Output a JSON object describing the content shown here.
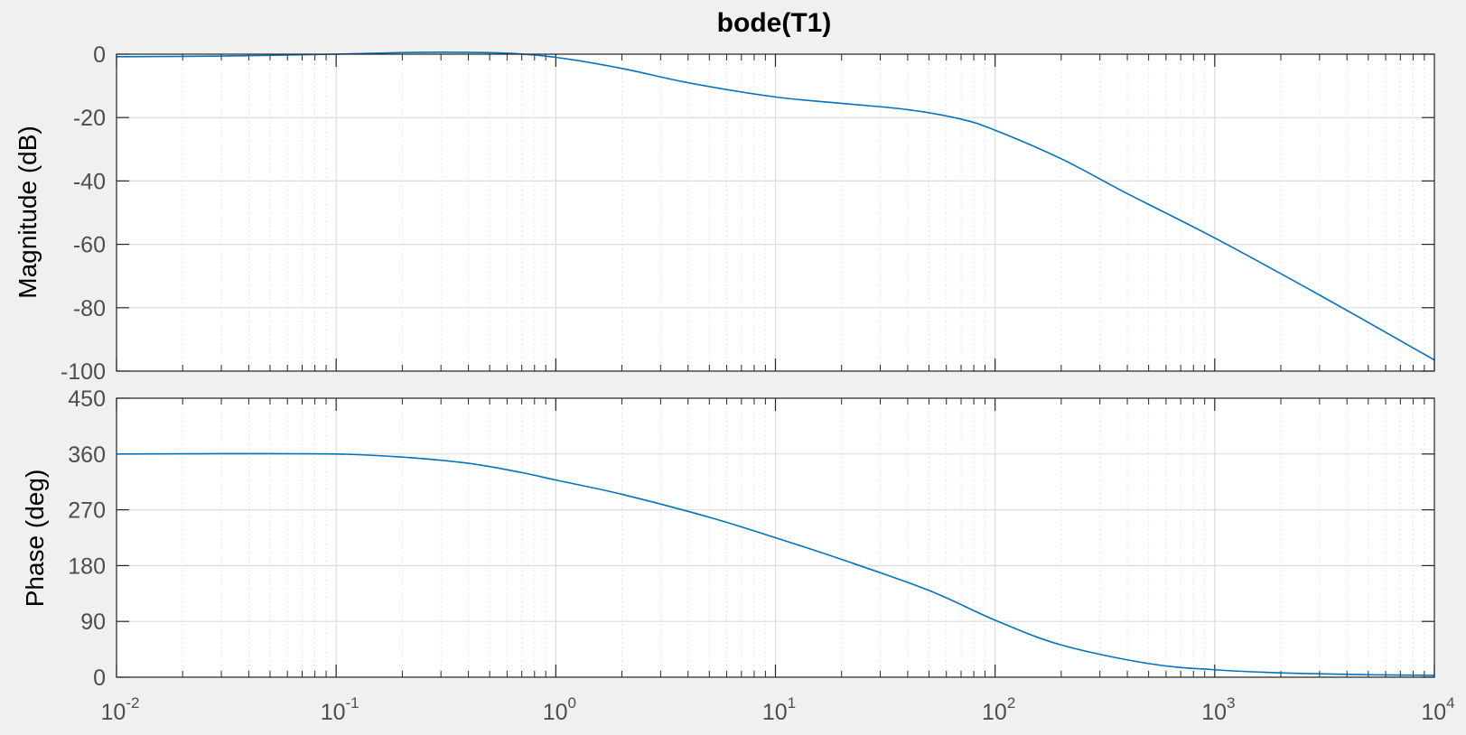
{
  "chart_data": {
    "type": "line",
    "title": "bode(T1)",
    "xscale": "log",
    "xlim": [
      0.01,
      10000
    ],
    "grid": true,
    "line_color": "#0072bd",
    "x_ticks": [
      {
        "base": "10",
        "exp": "-2",
        "value": 0.01
      },
      {
        "base": "10",
        "exp": "-1",
        "value": 0.1
      },
      {
        "base": "10",
        "exp": "0",
        "value": 1
      },
      {
        "base": "10",
        "exp": "1",
        "value": 10
      },
      {
        "base": "10",
        "exp": "2",
        "value": 100
      },
      {
        "base": "10",
        "exp": "3",
        "value": 1000
      },
      {
        "base": "10",
        "exp": "4",
        "value": 10000
      }
    ],
    "magnitude": {
      "ylabel": "Magnitude (dB)",
      "ylim": [
        -100,
        0
      ],
      "yticks": [
        0,
        -20,
        -40,
        -60,
        -80,
        -100
      ],
      "x": [
        0.01,
        0.03,
        0.1,
        0.2,
        0.35,
        0.6,
        1,
        2,
        4,
        10,
        20,
        40,
        70,
        100,
        200,
        400,
        1000,
        3000,
        10000
      ],
      "y": [
        -0.8,
        -0.6,
        0,
        0.5,
        0.6,
        0.3,
        -1,
        -4.5,
        -9,
        -13.5,
        -15.5,
        -17.5,
        -20.5,
        -24,
        -33,
        -44,
        -58,
        -76,
        -96.5
      ]
    },
    "phase": {
      "ylabel": "Phase (deg)",
      "ylim": [
        0,
        450
      ],
      "yticks": [
        0,
        90,
        180,
        270,
        360,
        450
      ],
      "x": [
        0.01,
        0.03,
        0.1,
        0.2,
        0.4,
        0.7,
        1,
        2,
        5,
        10,
        20,
        50,
        100,
        200,
        500,
        1000,
        2000,
        5000,
        10000
      ],
      "y": [
        360,
        360.5,
        360,
        355,
        345,
        330,
        318,
        295,
        258,
        225,
        190,
        140,
        92,
        52,
        22,
        12,
        7,
        4,
        3
      ]
    }
  }
}
